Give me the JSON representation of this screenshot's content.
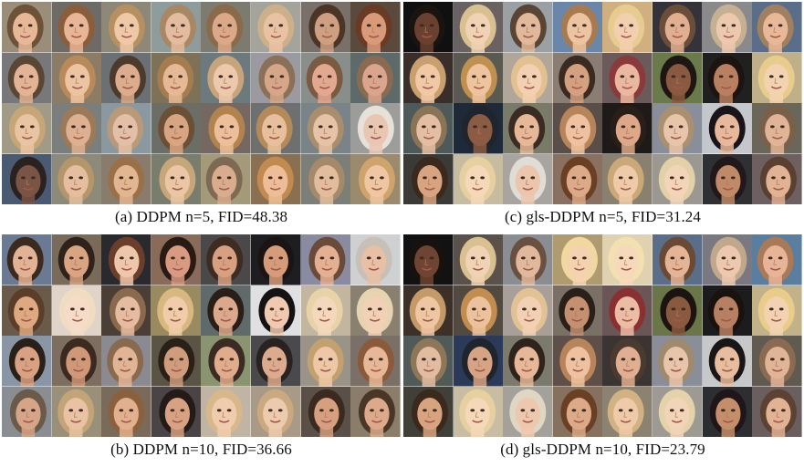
{
  "panels": [
    {
      "id": "a",
      "caption": "(a) DDPM n=5, FID=48.38",
      "tiles": [
        {
          "bg": "#9a8e7a",
          "hair": "#6e5238",
          "skin": "#e6b898"
        },
        {
          "bg": "#6e6a66",
          "hair": "#8a5e3a",
          "skin": "#e8b596"
        },
        {
          "bg": "#8d8877",
          "hair": "#b79062",
          "skin": "#efc8a8"
        },
        {
          "bg": "#8f9c9c",
          "hair": "#a88764",
          "skin": "#e3bb9e"
        },
        {
          "bg": "#7d7a70",
          "hair": "#8b6a4c",
          "skin": "#dba988"
        },
        {
          "bg": "#a4a39c",
          "hair": "#cdb08a",
          "skin": "#e9c2a3"
        },
        {
          "bg": "#79706a",
          "hair": "#4a3526",
          "skin": "#cf9f82"
        },
        {
          "bg": "#5a4a3e",
          "hair": "#6a3a24",
          "skin": "#d99a7a"
        },
        {
          "bg": "#78787a",
          "hair": "#5a4634",
          "skin": "#e2b394"
        },
        {
          "bg": "#8c7c66",
          "hair": "#b88a5a",
          "skin": "#ecc4a2"
        },
        {
          "bg": "#6a7074",
          "hair": "#4c3a2c",
          "skin": "#dcac8c"
        },
        {
          "bg": "#7d7258",
          "hair": "#a57c50",
          "skin": "#e6b996"
        },
        {
          "bg": "#6c7a7e",
          "hair": "#c7a47c",
          "skin": "#ecc9ac"
        },
        {
          "bg": "#9a9aa0",
          "hair": "#8a7058",
          "skin": "#d6a688"
        },
        {
          "bg": "#8a8e8a",
          "hair": "#7a5a40",
          "skin": "#e3a890"
        },
        {
          "bg": "#5e6a6a",
          "hair": "#8a6a50",
          "skin": "#d9a58c"
        },
        {
          "bg": "#a09a86",
          "hair": "#c6a676",
          "skin": "#e9c4a2"
        },
        {
          "bg": "#7a7e7c",
          "hair": "#9a7a5a",
          "skin": "#deb092"
        },
        {
          "bg": "#8a98a0",
          "hair": "#b89a7a",
          "skin": "#e2bfa6"
        },
        {
          "bg": "#6a6e66",
          "hair": "#6c5036",
          "skin": "#d8a582"
        },
        {
          "bg": "#746860",
          "hair": "#b3834e",
          "skin": "#ebbf9a"
        },
        {
          "bg": "#6e7070",
          "hair": "#b58a5a",
          "skin": "#e8bf9c"
        },
        {
          "bg": "#7a8488",
          "hair": "#a98e6e",
          "skin": "#e6c2a6"
        },
        {
          "bg": "#9c9c9a",
          "hair": "#e6e2da",
          "skin": "#e9c6b2"
        },
        {
          "bg": "#4a5a72",
          "hair": "#2a2220",
          "skin": "#7a5444"
        },
        {
          "bg": "#8e8a7a",
          "hair": "#b5956a",
          "skin": "#e4be9e"
        },
        {
          "bg": "#8a7c6c",
          "hair": "#9a7048",
          "skin": "#e3b692"
        },
        {
          "bg": "#7a7c6e",
          "hair": "#c7a67a",
          "skin": "#ebc6a4"
        },
        {
          "bg": "#a49a7a",
          "hair": "#7e6a52",
          "skin": "#d8ac8c"
        },
        {
          "bg": "#8a7050",
          "hair": "#c08a50",
          "skin": "#ecbd96"
        },
        {
          "bg": "#7c7e78",
          "hair": "#a48a6a",
          "skin": "#e1bd9e"
        },
        {
          "bg": "#9c8a6c",
          "hair": "#cfa46c",
          "skin": "#eec6a2"
        }
      ]
    },
    {
      "id": "c",
      "caption": "(c) gls-DDPM n=5, FID=31.24",
      "tiles": [
        {
          "bg": "#101010",
          "hair": "#1a1410",
          "skin": "#6a4030"
        },
        {
          "bg": "#6a6262",
          "hair": "#d8c090",
          "skin": "#f0d2b4"
        },
        {
          "bg": "#9aa0a4",
          "hair": "#5a4434",
          "skin": "#e2b89a"
        },
        {
          "bg": "#6a86a8",
          "hair": "#a87a50",
          "skin": "#ebc4a2"
        },
        {
          "bg": "#d0b080",
          "hair": "#e6cc8e",
          "skin": "#f2cfae"
        },
        {
          "bg": "#36323a",
          "hair": "#6a4e3a",
          "skin": "#e0ae90"
        },
        {
          "bg": "#8a8a8c",
          "hair": "#c6b094",
          "skin": "#ecc8ae"
        },
        {
          "bg": "#5a6e8a",
          "hair": "#a08060",
          "skin": "#e8b898"
        },
        {
          "bg": "#3a2e2a",
          "hair": "#c8a070",
          "skin": "#f0c8a4"
        },
        {
          "bg": "#5a5a52",
          "hair": "#c09050",
          "skin": "#eec49e"
        },
        {
          "bg": "#b0a69a",
          "hair": "#e2c090",
          "skin": "#f2d0b2"
        },
        {
          "bg": "#8a7e74",
          "hair": "#3a2a22",
          "skin": "#d4a080"
        },
        {
          "bg": "#6a5a5a",
          "hair": "#8a3a3a",
          "skin": "#eab8a0"
        },
        {
          "bg": "#6a7a4a",
          "hair": "#1e1612",
          "skin": "#8a5a40"
        },
        {
          "bg": "#202020",
          "hair": "#1c1410",
          "skin": "#b88060"
        },
        {
          "bg": "#c0b08a",
          "hair": "#e8cc8c",
          "skin": "#f2d2b0"
        },
        {
          "bg": "#4e5a5a",
          "hair": "#8a7458",
          "skin": "#e4bea2"
        },
        {
          "bg": "#1e2a3a",
          "hair": "#20242c",
          "skin": "#8a5c44"
        },
        {
          "bg": "#7a7a6a",
          "hair": "#3a2c22",
          "skin": "#e6b898"
        },
        {
          "bg": "#5a4e48",
          "hair": "#b8845a",
          "skin": "#eec2a0"
        },
        {
          "bg": "#1e1a1a",
          "hair": "#2a1e18",
          "skin": "#dca888"
        },
        {
          "bg": "#8a8e9a",
          "hair": "#a89070",
          "skin": "#e8c4aa"
        },
        {
          "bg": "#c4c8cc",
          "hair": "#18141a",
          "skin": "#e8b89c"
        },
        {
          "bg": "#6a665a",
          "hair": "#7a6048",
          "skin": "#e0b496"
        },
        {
          "bg": "#3c3a36",
          "hair": "#3a2a1e",
          "skin": "#d8a480"
        },
        {
          "bg": "#c8bca0",
          "hair": "#e6d0a0",
          "skin": "#f4d8b8"
        },
        {
          "bg": "#a8a4a0",
          "hair": "#e0dcd6",
          "skin": "#ecc6ac"
        },
        {
          "bg": "#8a7060",
          "hair": "#6a4024",
          "skin": "#dcaa88"
        },
        {
          "bg": "#8a8070",
          "hair": "#caa878",
          "skin": "#eecaa8"
        },
        {
          "bg": "#9a9890",
          "hair": "#e2d0a8",
          "skin": "#f2d4b8"
        },
        {
          "bg": "#2e3034",
          "hair": "#20181a",
          "skin": "#c08a68"
        },
        {
          "bg": "#6e6060",
          "hair": "#5a4030",
          "skin": "#e2b294"
        }
      ]
    },
    {
      "id": "b",
      "caption": "(b) DDPM n=10, FID=36.66",
      "tiles": [
        {
          "bg": "#6a7a92",
          "hair": "#3a2a20",
          "skin": "#e2b294"
        },
        {
          "bg": "#7a6a5a",
          "hair": "#2e221a",
          "skin": "#d8a482"
        },
        {
          "bg": "#2a2a2e",
          "hair": "#6a3e2a",
          "skin": "#eec6ac"
        },
        {
          "bg": "#8a6a58",
          "hair": "#2a1a14",
          "skin": "#d89a80"
        },
        {
          "bg": "#4a4848",
          "hair": "#3e2c22",
          "skin": "#d8a080"
        },
        {
          "bg": "#1e1e22",
          "hair": "#1a1412",
          "skin": "#d69c7a"
        },
        {
          "bg": "#8a8aa0",
          "hair": "#6a4a38",
          "skin": "#e4b094"
        },
        {
          "bg": "#cfd0d2",
          "hair": "#c6c0b6",
          "skin": "#e8c0a6"
        },
        {
          "bg": "#6a5a4a",
          "hair": "#5a3e2a",
          "skin": "#e0a880"
        },
        {
          "bg": "#e0d4c8",
          "hair": "#f0dcc0",
          "skin": "#f6dcc8"
        },
        {
          "bg": "#4a3e36",
          "hair": "#8a6a4e",
          "skin": "#e6bca0"
        },
        {
          "bg": "#9a8a60",
          "hair": "#d8b880",
          "skin": "#f0cca8"
        },
        {
          "bg": "#606a6a",
          "hair": "#2a1e18",
          "skin": "#dba88c"
        },
        {
          "bg": "#e0e0e2",
          "hair": "#141212",
          "skin": "#f0cab0"
        },
        {
          "bg": "#c2b6a0",
          "hair": "#e8d2a8",
          "skin": "#f4d8bc"
        },
        {
          "bg": "#8a8070",
          "hair": "#e6d4b0",
          "skin": "#f2d0b6"
        },
        {
          "bg": "#8a96a6",
          "hair": "#2a201a",
          "skin": "#d8a282"
        },
        {
          "bg": "#7e6e60",
          "hair": "#3a2a20",
          "skin": "#d09878"
        },
        {
          "bg": "#8a8a90",
          "hair": "#8a6a4e",
          "skin": "#e2b496"
        },
        {
          "bg": "#5a5444",
          "hair": "#2a2018",
          "skin": "#cf9c7c"
        },
        {
          "bg": "#8a9470",
          "hair": "#3a2c22",
          "skin": "#e0ac8c"
        },
        {
          "bg": "#4a4a4c",
          "hair": "#2a2220",
          "skin": "#dcaa8c"
        },
        {
          "bg": "#9a9488",
          "hair": "#c2a070",
          "skin": "#eec8a6"
        },
        {
          "bg": "#7a7068",
          "hair": "#8a5a3a",
          "skin": "#e6b898"
        },
        {
          "bg": "#8a8e92",
          "hair": "#6a5a4a",
          "skin": "#d6a486"
        },
        {
          "bg": "#9a907a",
          "hair": "#c2a478",
          "skin": "#e8c2a2"
        },
        {
          "bg": "#7a6a5a",
          "hair": "#8a603e",
          "skin": "#e2b08e"
        },
        {
          "bg": "#4a4446",
          "hair": "#241a18",
          "skin": "#d8a282"
        },
        {
          "bg": "#c0b4a4",
          "hair": "#d8b88a",
          "skin": "#f0ccae"
        },
        {
          "bg": "#a89a86",
          "hair": "#caa880",
          "skin": "#eccaae"
        },
        {
          "bg": "#5a5048",
          "hair": "#3a2a20",
          "skin": "#d6a080"
        },
        {
          "bg": "#8a7e6a",
          "hair": "#4a3626",
          "skin": "#dcaa8a"
        }
      ]
    },
    {
      "id": "d",
      "caption": "(d) gls-DDPM n=10, FID=23.79",
      "tiles": [
        {
          "bg": "#121212",
          "hair": "#18120e",
          "skin": "#6e4432"
        },
        {
          "bg": "#5a524a",
          "hair": "#d8c090",
          "skin": "#f0d2b4"
        },
        {
          "bg": "#8a8e92",
          "hair": "#6a5040",
          "skin": "#e2b89c"
        },
        {
          "bg": "#b09a70",
          "hair": "#f0d8a0",
          "skin": "#f4d2b0"
        },
        {
          "bg": "#e0d2b0",
          "hair": "#f2e0b0",
          "skin": "#f6d8ba"
        },
        {
          "bg": "#5a6e8a",
          "hair": "#6a4a34",
          "skin": "#e4b496"
        },
        {
          "bg": "#7a7880",
          "hair": "#c0a88c",
          "skin": "#ecc8ae"
        },
        {
          "bg": "#5a7ea0",
          "hair": "#a87a58",
          "skin": "#e8b498"
        },
        {
          "bg": "#3c3028",
          "hair": "#c49a6a",
          "skin": "#eec6a2"
        },
        {
          "bg": "#524a40",
          "hair": "#c28e50",
          "skin": "#ecc29e"
        },
        {
          "bg": "#a8a098",
          "hair": "#e2c294",
          "skin": "#f2d0b4"
        },
        {
          "bg": "#7a7066",
          "hair": "#2a201a",
          "skin": "#c49070"
        },
        {
          "bg": "#6a5656",
          "hair": "#8a3030",
          "skin": "#ecbca4"
        },
        {
          "bg": "#6a7648",
          "hair": "#1c1410",
          "skin": "#8a5a40"
        },
        {
          "bg": "#1c1c1e",
          "hair": "#1a120e",
          "skin": "#b88062"
        },
        {
          "bg": "#c2b28a",
          "hair": "#eacc8a",
          "skin": "#f2d2b0"
        },
        {
          "bg": "#505a58",
          "hair": "#8e7658",
          "skin": "#e2bca0"
        },
        {
          "bg": "#2a3a58",
          "hair": "#20242c",
          "skin": "#d6a484"
        },
        {
          "bg": "#7c7a6c",
          "hair": "#2e241c",
          "skin": "#e6b898"
        },
        {
          "bg": "#5e5048",
          "hair": "#b8845a",
          "skin": "#eec2a0"
        },
        {
          "bg": "#3a3432",
          "hair": "#4a3a30",
          "skin": "#e0ae90"
        },
        {
          "bg": "#8a8e98",
          "hair": "#a08a6e",
          "skin": "#e8c4aa"
        },
        {
          "bg": "#c6c8ca",
          "hair": "#1a1618",
          "skin": "#e8bc9e"
        },
        {
          "bg": "#605a50",
          "hair": "#8a6a50",
          "skin": "#e0b496"
        },
        {
          "bg": "#404038",
          "hair": "#3a2a1e",
          "skin": "#d8a480"
        },
        {
          "bg": "#c8bca2",
          "hair": "#e6d0a0",
          "skin": "#f4d8b8"
        },
        {
          "bg": "#a4a09a",
          "hair": "#e0d6c4",
          "skin": "#eec8ae"
        },
        {
          "bg": "#86705e",
          "hair": "#6a4024",
          "skin": "#dcaa88"
        },
        {
          "bg": "#8c8272",
          "hair": "#d2b282",
          "skin": "#eecaa8"
        },
        {
          "bg": "#9c9a92",
          "hair": "#e4d2aa",
          "skin": "#f2d4b8"
        },
        {
          "bg": "#2c2e32",
          "hair": "#1e1618",
          "skin": "#c48e6a"
        },
        {
          "bg": "#6a5e5e",
          "hair": "#5c4232",
          "skin": "#e2b294"
        }
      ]
    }
  ]
}
